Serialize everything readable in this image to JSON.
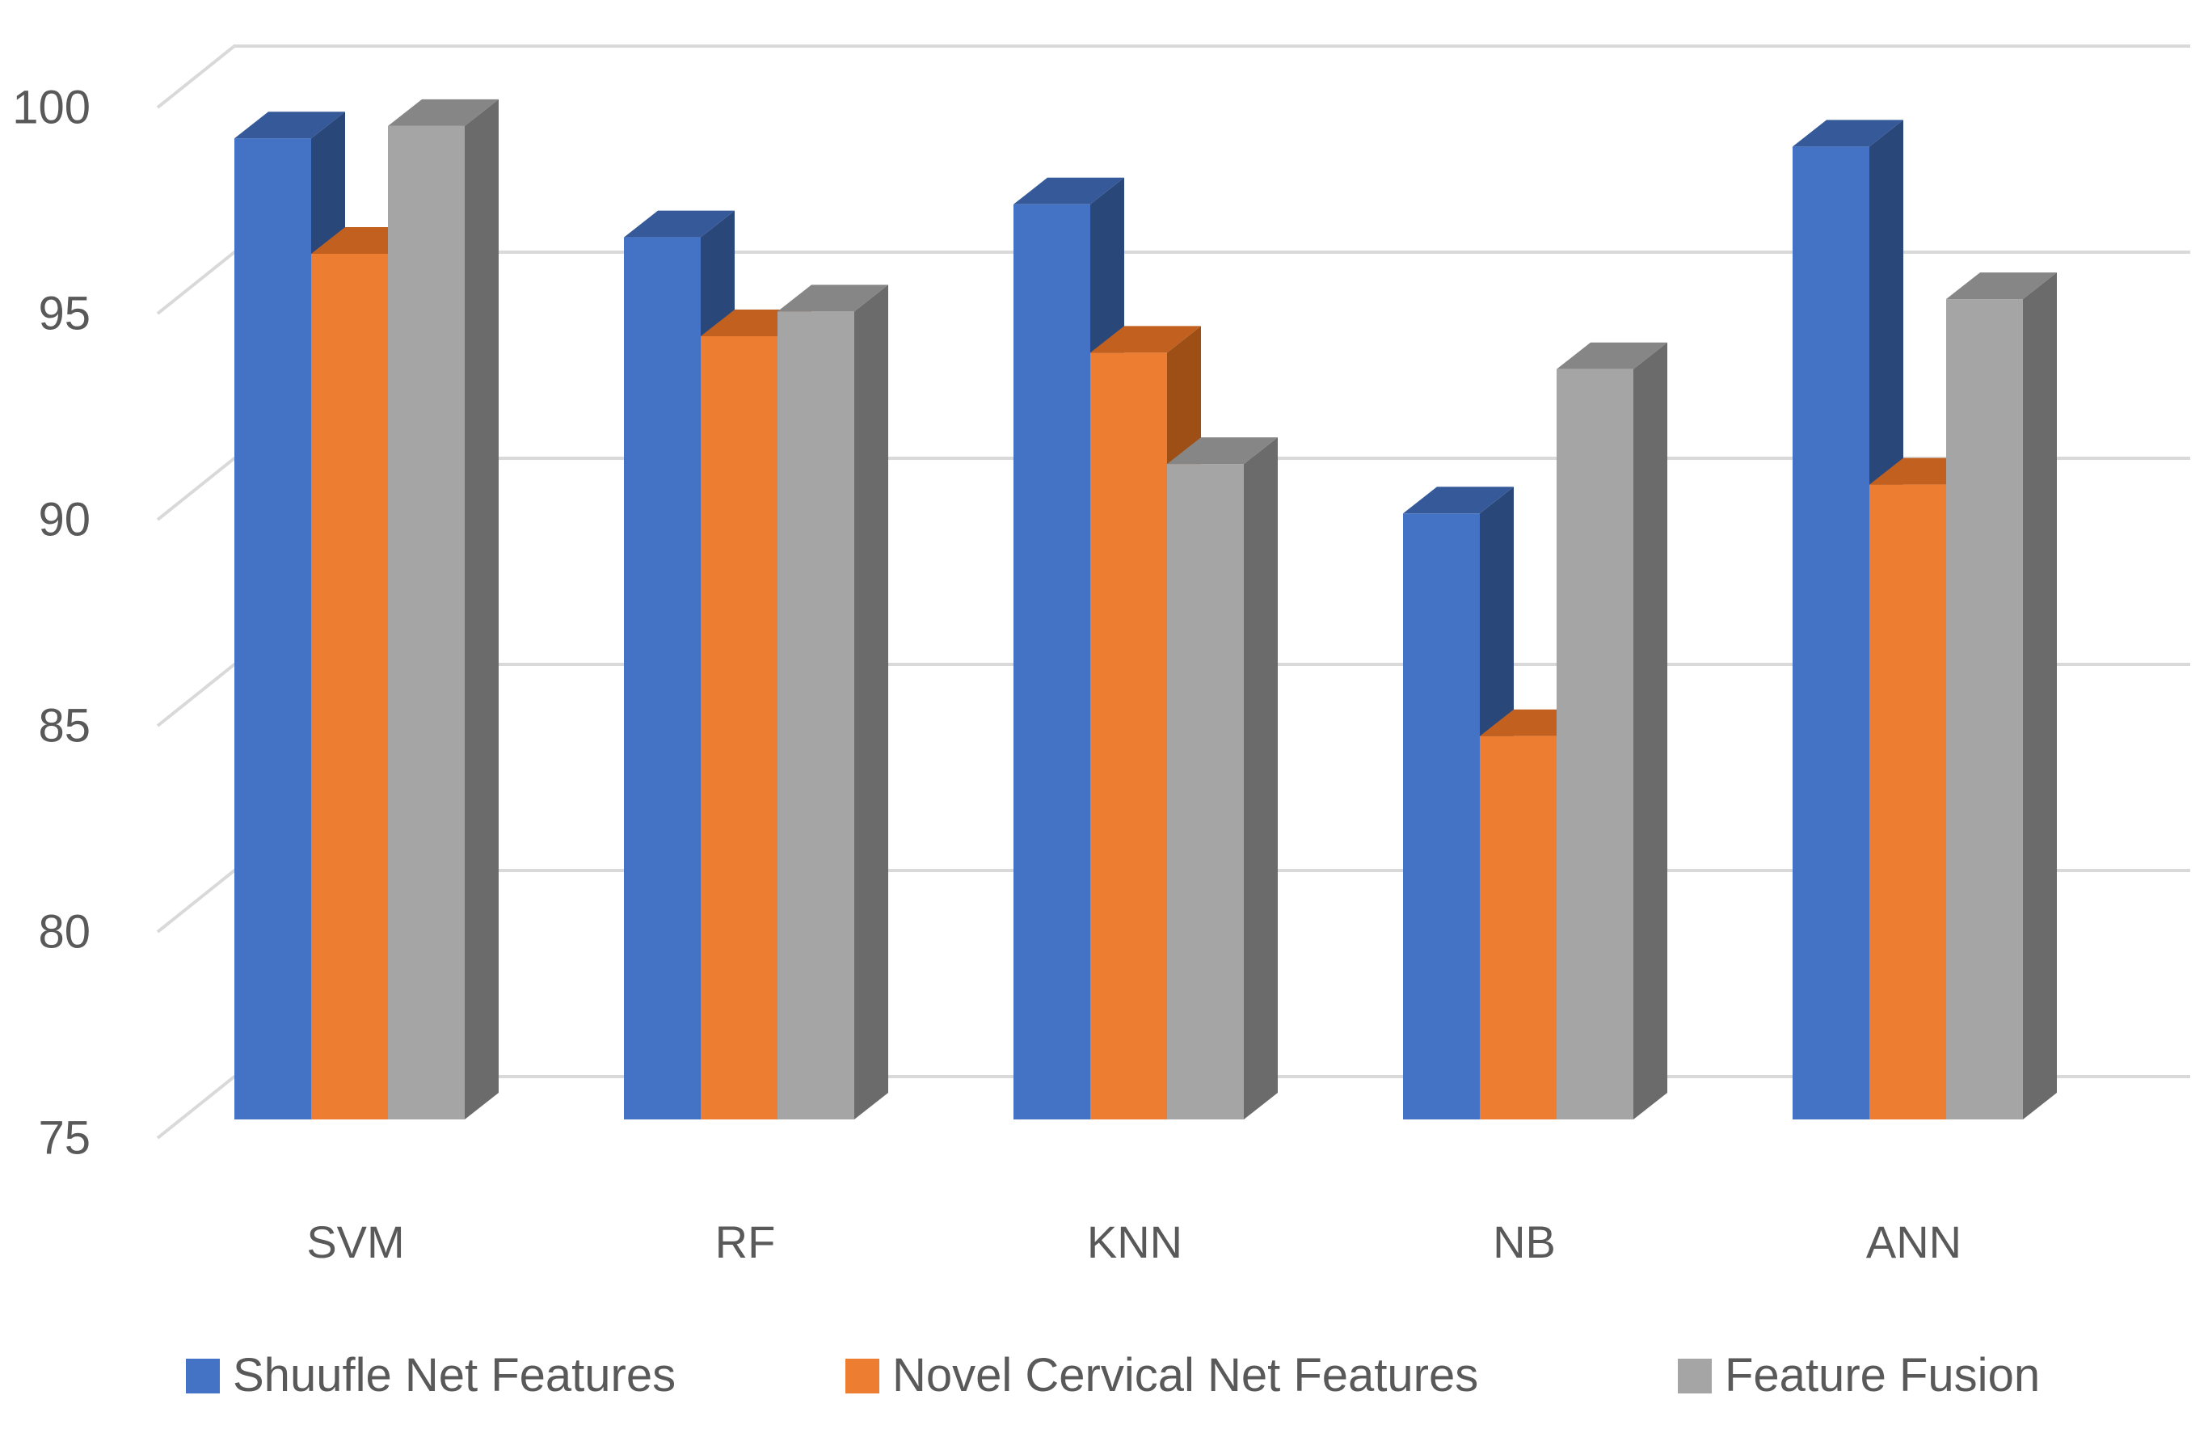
{
  "chart_data": {
    "type": "bar",
    "style": "3d-column",
    "title": "",
    "xlabel": "",
    "ylabel": "",
    "categories": [
      "SVM",
      "RF",
      "KNN",
      "NB",
      "ANN"
    ],
    "series": [
      {
        "name": "Shuufle Net Features",
        "color": "#4472C4",
        "color_top": "#355999",
        "color_side": "#2A477A",
        "values": [
          98.8,
          96.4,
          97.2,
          89.7,
          98.6
        ]
      },
      {
        "name": "Novel Cervical Net Features",
        "color": "#ED7D31",
        "color_top": "#C2611F",
        "color_side": "#9E4F16",
        "values": [
          96.0,
          94.0,
          93.6,
          84.3,
          90.4
        ]
      },
      {
        "name": "Feature Fusion",
        "color": "#A5A5A5",
        "color_top": "#868686",
        "color_side": "#6B6B6B",
        "values": [
          99.1,
          94.6,
          90.9,
          93.2,
          94.9
        ]
      }
    ],
    "ylim": [
      75,
      100
    ],
    "y_ticks": [
      "75",
      "80",
      "85",
      "90",
      "95",
      "100"
    ],
    "y_tick_step": 5,
    "grid": true,
    "legend_position": "bottom",
    "gridline_color": "#D9D9D9",
    "text_color": "#595959",
    "background": "#FFFFFF"
  }
}
